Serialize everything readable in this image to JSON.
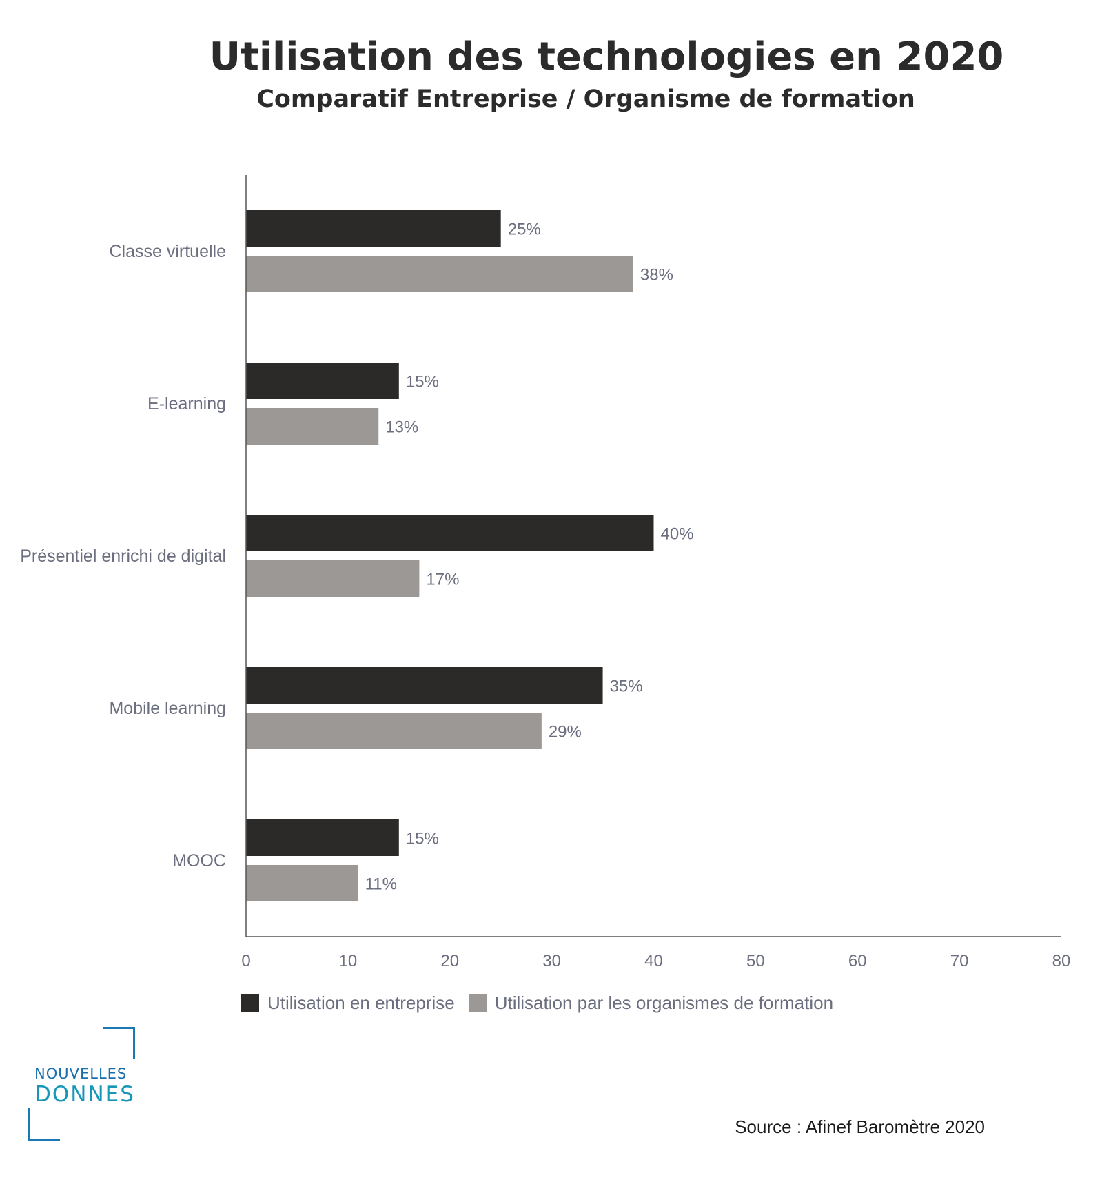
{
  "chart_data": {
    "type": "bar",
    "orientation": "horizontal",
    "title": "Utilisation des technologies en 2020",
    "subtitle": "Comparatif Entreprise / Organisme de formation",
    "categories": [
      "Classe virtuelle",
      "E-learning",
      "Présentiel enrichi de digital",
      "Mobile learning",
      "MOOC"
    ],
    "series": [
      {
        "name": "Utilisation en entreprise",
        "values": [
          25,
          15,
          40,
          35,
          15
        ],
        "color": "#2b2a29",
        "labels": [
          "25%",
          "15%",
          "40%",
          "35%",
          "15%"
        ]
      },
      {
        "name": "Utilisation par les organismes de formation",
        "values": [
          38,
          13,
          17,
          29,
          11
        ],
        "color": "#9b9896",
        "labels": [
          "38%",
          "13%",
          "17%",
          "29%",
          "11%"
        ]
      }
    ],
    "xlim": [
      0,
      80
    ],
    "xticks": [
      "0",
      "10",
      "20",
      "30",
      "40",
      "50",
      "60",
      "70",
      "80"
    ],
    "grid": false,
    "legend_position": "bottom"
  },
  "footer": {
    "source": "Source : Afinef Baromètre 2020",
    "logo_line1": "NOUVELLES",
    "logo_line2": "DONNES"
  }
}
